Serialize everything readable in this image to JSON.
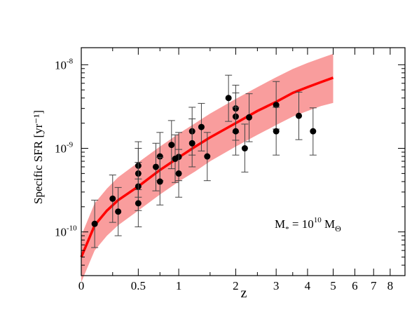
{
  "chart_data": {
    "type": "scatter",
    "xlabel": "z",
    "ylabel": "Specific SFR [yr⁻¹]",
    "x_scale": "log(1+z)",
    "y_scale": "log",
    "xlim": [
      0,
      9
    ],
    "ylim": [
      3e-11,
      1.6e-08
    ],
    "x_ticks": [
      {
        "value": 0,
        "label": "0"
      },
      {
        "value": 0.5,
        "label": "0.5"
      },
      {
        "value": 1,
        "label": "1"
      },
      {
        "value": 2,
        "label": "2"
      },
      {
        "value": 3,
        "label": "3"
      },
      {
        "value": 4,
        "label": "4"
      },
      {
        "value": 5,
        "label": "5"
      },
      {
        "value": 6,
        "label": "6"
      },
      {
        "value": 7,
        "label": "7"
      },
      {
        "value": 8,
        "label": "8"
      }
    ],
    "y_ticks": [
      {
        "value": 1e-10,
        "base": "10",
        "exp": "-10"
      },
      {
        "value": 1e-09,
        "base": "10",
        "exp": "-9"
      },
      {
        "value": 1e-08,
        "base": "10",
        "exp": "-8"
      }
    ],
    "annotation": {
      "main": "M",
      "sub": "*",
      "mid": " = 10",
      "sup": "10",
      "end": " M",
      "end_sub": "Θ"
    },
    "colors": {
      "model_line": "#ff0000",
      "model_band": "#f88c8c",
      "points": "#000000"
    },
    "model": {
      "x": [
        0,
        0.1,
        0.2,
        0.3,
        0.5,
        0.75,
        1,
        1.25,
        1.5,
        2,
        2.5,
        3,
        3.5,
        4,
        4.5,
        5
      ],
      "median": [
        5e-11,
        1.2e-10,
        1.8e-10,
        2.4e-10,
        3.5e-10,
        5.5e-10,
        7.8e-10,
        1.05e-09,
        1.35e-09,
        2e-09,
        2.8e-09,
        3.6e-09,
        4.6e-09,
        5.4e-09,
        6.2e-09,
        7e-09
      ],
      "lower": [
        2.5e-11,
        6e-11,
        9e-11,
        1.2e-10,
        1.8e-10,
        2.8e-10,
        4e-10,
        5.3e-10,
        7e-10,
        1.05e-09,
        1.45e-09,
        1.9e-09,
        2.4e-09,
        2.8e-09,
        3.2e-09,
        3.5e-09
      ],
      "upper": [
        9e-11,
        2.2e-10,
        3.3e-10,
        4.5e-10,
        6.8e-10,
        1.05e-09,
        1.5e-09,
        2e-09,
        2.6e-09,
        3.9e-09,
        5.4e-09,
        7.1e-09,
        8.9e-09,
        1.05e-08,
        1.2e-08,
        1.35e-08
      ]
    },
    "points": [
      {
        "x": 0.1,
        "y": 1.25e-10,
        "lo": 6.5e-11,
        "hi": 2.4e-10
      },
      {
        "x": 0.25,
        "y": 2.5e-10,
        "lo": 1.3e-10,
        "hi": 4.8e-10
      },
      {
        "x": 0.3,
        "y": 1.75e-10,
        "lo": 9e-11,
        "hi": 3.4e-10
      },
      {
        "x": 0.5,
        "y": 6.2e-10,
        "lo": 3.2e-10,
        "hi": 1.2e-09
      },
      {
        "x": 0.5,
        "y": 5e-10,
        "lo": 2.6e-10,
        "hi": 1e-09
      },
      {
        "x": 0.5,
        "y": 3.5e-10,
        "lo": 1.8e-10,
        "hi": 6.8e-10
      },
      {
        "x": 0.5,
        "y": 2.2e-10,
        "lo": 1.15e-10,
        "hi": 4.3e-10
      },
      {
        "x": 0.7,
        "y": 6e-10,
        "lo": 3.1e-10,
        "hi": 1.15e-09
      },
      {
        "x": 0.75,
        "y": 8e-10,
        "lo": 4.1e-10,
        "hi": 1.55e-09
      },
      {
        "x": 0.75,
        "y": 4e-10,
        "lo": 2.1e-10,
        "hi": 7.8e-10
      },
      {
        "x": 0.9,
        "y": 1.1e-09,
        "lo": 5.7e-10,
        "hi": 2.15e-09
      },
      {
        "x": 0.95,
        "y": 7.5e-10,
        "lo": 3.9e-10,
        "hi": 1.45e-09
      },
      {
        "x": 1.0,
        "y": 7.9e-10,
        "lo": 4.1e-10,
        "hi": 1.55e-09
      },
      {
        "x": 1.0,
        "y": 5e-10,
        "lo": 2.6e-10,
        "hi": 9.7e-10
      },
      {
        "x": 1.2,
        "y": 1.6e-09,
        "lo": 8.3e-10,
        "hi": 3.1e-09
      },
      {
        "x": 1.2,
        "y": 1.15e-09,
        "lo": 6e-10,
        "hi": 2.25e-09
      },
      {
        "x": 1.35,
        "y": 1.8e-09,
        "lo": 9.3e-10,
        "hi": 3.45e-09
      },
      {
        "x": 1.45,
        "y": 8e-10,
        "lo": 4.1e-10,
        "hi": 1.55e-09
      },
      {
        "x": 1.85,
        "y": 4e-09,
        "lo": 2.1e-09,
        "hi": 7.5e-09
      },
      {
        "x": 2.0,
        "y": 3e-09,
        "lo": 1.55e-09,
        "hi": 5.7e-09
      },
      {
        "x": 2.0,
        "y": 2.4e-09,
        "lo": 1.25e-09,
        "hi": 4.6e-09
      },
      {
        "x": 2.0,
        "y": 1.6e-09,
        "lo": 8.3e-10,
        "hi": 3.1e-09
      },
      {
        "x": 2.2,
        "y": 1e-09,
        "lo": 5.2e-10,
        "hi": 1.95e-09
      },
      {
        "x": 2.3,
        "y": 2.35e-09,
        "lo": 1.2e-09,
        "hi": 4.5e-09
      },
      {
        "x": 3.0,
        "y": 3.3e-09,
        "lo": 1.7e-09,
        "hi": 6.3e-09
      },
      {
        "x": 3.0,
        "y": 1.6e-09,
        "lo": 8.3e-10,
        "hi": 3.1e-09
      },
      {
        "x": 3.7,
        "y": 2.45e-09,
        "lo": 1.27e-09,
        "hi": 4.7e-09
      },
      {
        "x": 4.2,
        "y": 1.6e-09,
        "lo": 8.3e-10,
        "hi": 3.05e-09
      }
    ]
  }
}
